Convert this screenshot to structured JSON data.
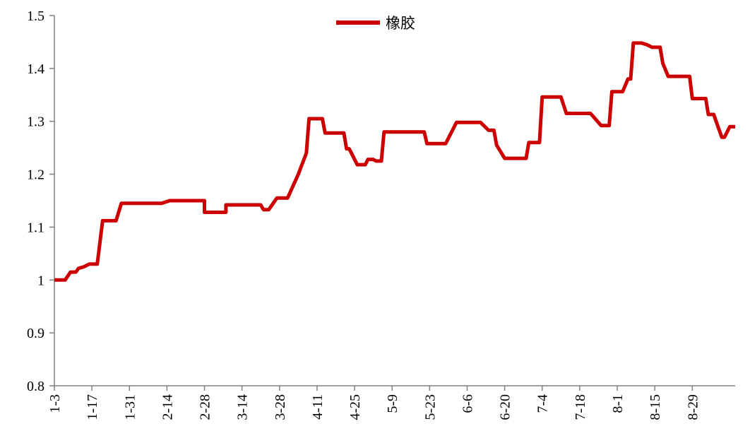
{
  "chart_data": {
    "type": "line",
    "title": "",
    "xlabel": "",
    "ylabel": "",
    "ylim": [
      0.8,
      1.5
    ],
    "yticks": [
      "0.8",
      "0.9",
      "1",
      "1.1",
      "1.2",
      "1.3",
      "1.4",
      "1.5"
    ],
    "xtick_labels": [
      "1-3",
      "1-17",
      "1-31",
      "2-14",
      "2-28",
      "3-14",
      "3-28",
      "4-11",
      "4-25",
      "5-9",
      "5-23",
      "6-6",
      "6-20",
      "7-4",
      "7-18",
      "8-1",
      "8-15",
      "8-29"
    ],
    "grid": false,
    "legend": {
      "position": "top-center"
    },
    "colors": {
      "series": "#cc0000",
      "axis": "#808080"
    },
    "series": [
      {
        "name": "橡胶",
        "points": [
          [
            "1-3",
            1.0
          ],
          [
            "1-7",
            1.0
          ],
          [
            "1-9",
            1.015
          ],
          [
            "1-11",
            1.015
          ],
          [
            "1-12",
            1.022
          ],
          [
            "1-14",
            1.025
          ],
          [
            "1-16",
            1.03
          ],
          [
            "1-19",
            1.03
          ],
          [
            "1-21",
            1.112
          ],
          [
            "1-26",
            1.112
          ],
          [
            "1-28",
            1.145
          ],
          [
            "2-12",
            1.145
          ],
          [
            "2-15",
            1.15
          ],
          [
            "2-28",
            1.15
          ],
          [
            "2-28",
            1.128
          ],
          [
            "3-8",
            1.128
          ],
          [
            "3-8",
            1.142
          ],
          [
            "3-21",
            1.142
          ],
          [
            "3-22",
            1.133
          ],
          [
            "3-24",
            1.133
          ],
          [
            "3-27",
            1.155
          ],
          [
            "3-31",
            1.155
          ],
          [
            "4-4",
            1.2
          ],
          [
            "4-7",
            1.24
          ],
          [
            "4-8",
            1.305
          ],
          [
            "4-13",
            1.305
          ],
          [
            "4-14",
            1.278
          ],
          [
            "4-21",
            1.278
          ],
          [
            "4-22",
            1.248
          ],
          [
            "4-23",
            1.248
          ],
          [
            "4-26",
            1.218
          ],
          [
            "4-29",
            1.218
          ],
          [
            "4-30",
            1.228
          ],
          [
            "5-2",
            1.228
          ],
          [
            "5-3",
            1.225
          ],
          [
            "5-5",
            1.225
          ],
          [
            "5-6",
            1.28
          ],
          [
            "5-21",
            1.28
          ],
          [
            "5-22",
            1.258
          ],
          [
            "5-29",
            1.258
          ],
          [
            "6-2",
            1.298
          ],
          [
            "6-11",
            1.298
          ],
          [
            "6-14",
            1.283
          ],
          [
            "6-16",
            1.283
          ],
          [
            "6-17",
            1.255
          ],
          [
            "6-20",
            1.23
          ],
          [
            "6-28",
            1.23
          ],
          [
            "6-29",
            1.26
          ],
          [
            "7-3",
            1.26
          ],
          [
            "7-4",
            1.346
          ],
          [
            "7-11",
            1.346
          ],
          [
            "7-13",
            1.315
          ],
          [
            "7-22",
            1.315
          ],
          [
            "7-26",
            1.292
          ],
          [
            "7-29",
            1.292
          ],
          [
            "7-30",
            1.356
          ],
          [
            "8-3",
            1.356
          ],
          [
            "8-5",
            1.38
          ],
          [
            "8-6",
            1.38
          ],
          [
            "8-7",
            1.448
          ],
          [
            "8-10",
            1.448
          ],
          [
            "8-12",
            1.445
          ],
          [
            "8-14",
            1.44
          ],
          [
            "8-17",
            1.44
          ],
          [
            "8-18",
            1.41
          ],
          [
            "8-20",
            1.385
          ],
          [
            "8-28",
            1.385
          ],
          [
            "8-29",
            1.343
          ],
          [
            "9-3",
            1.343
          ],
          [
            "9-4",
            1.313
          ],
          [
            "9-6",
            1.313
          ],
          [
            "9-9",
            1.27
          ],
          [
            "9-10",
            1.27
          ],
          [
            "9-12",
            1.29
          ],
          [
            "9-14",
            1.29
          ]
        ]
      }
    ]
  }
}
